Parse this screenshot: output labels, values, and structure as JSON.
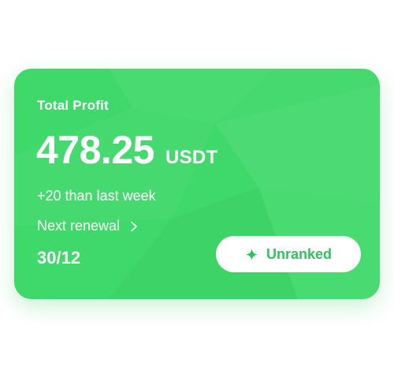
{
  "card": {
    "title": "Total Profit",
    "amount": "478.25",
    "currency": "USDT",
    "weekly_change": "+20 than last week",
    "renewal_label": "Next renewal",
    "renewal_date": "30/12",
    "rank_label": "Unranked"
  },
  "icons": {
    "renewal_arrow": "chevron-right-icon",
    "rank": "sparkle-icon"
  },
  "colors": {
    "card_background": "#3fd86a",
    "rank_text": "#2cc55a",
    "text": "#ffffff"
  }
}
